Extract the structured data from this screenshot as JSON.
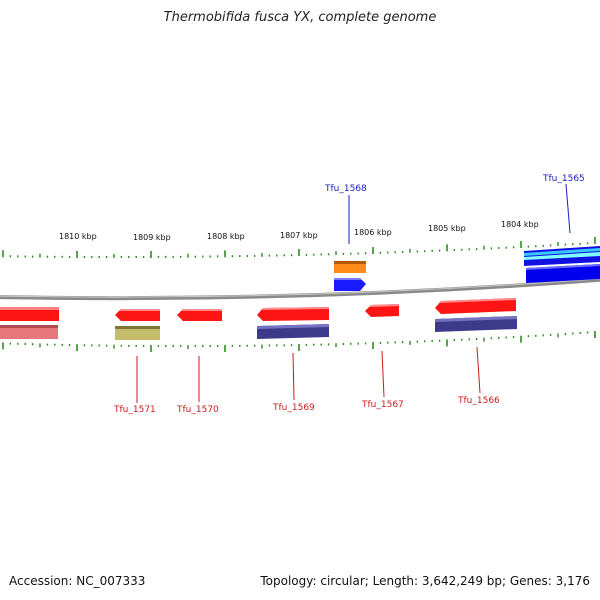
{
  "title": "Thermobifida fusca YX, complete genome",
  "accession": "Accession: NC_007333",
  "summary": "Topology: circular; Length: 3,642,249 bp; Genes: 3,176",
  "colors": {
    "backbone": "#8a8a8a",
    "ticks": "#2e8b22",
    "forward_label": "#1a1acc",
    "reverse_label": "#cc1a1a"
  },
  "scale_labels": [
    "1810 kbp",
    "1809 kbp",
    "1808 kbp",
    "1807 kbp",
    "1806 kbp",
    "1805 kbp",
    "1804 kbp"
  ],
  "genes": [
    {
      "name": "Tfu_1565",
      "strand": "forward"
    },
    {
      "name": "Tfu_1566",
      "strand": "reverse"
    },
    {
      "name": "Tfu_1567",
      "strand": "reverse"
    },
    {
      "name": "Tfu_1568",
      "strand": "forward"
    },
    {
      "name": "Tfu_1569",
      "strand": "reverse"
    },
    {
      "name": "Tfu_1570",
      "strand": "reverse"
    },
    {
      "name": "Tfu_1571",
      "strand": "reverse"
    }
  ]
}
